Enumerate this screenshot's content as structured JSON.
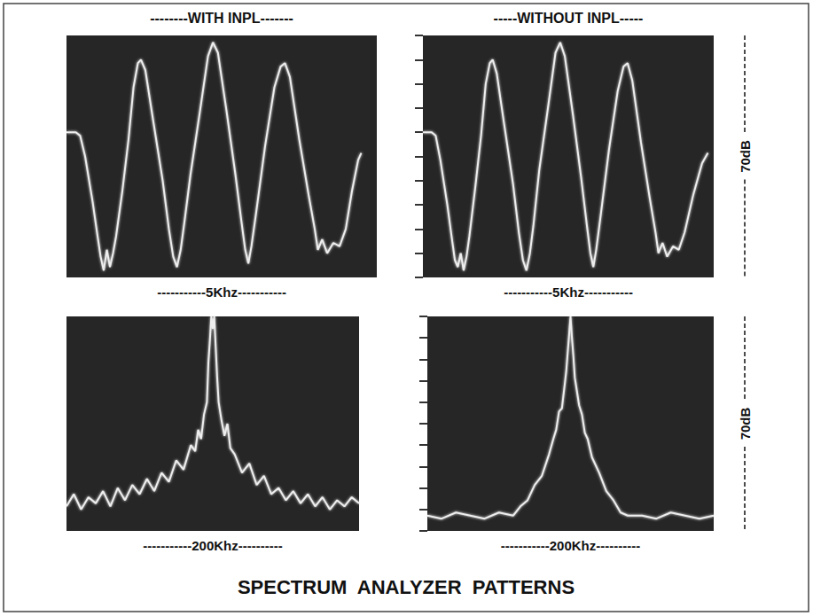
{
  "title": "SPECTRUM  ANALYZER  PATTERNS",
  "column_titles": [
    "--------WITH INPL-------",
    "-----WITHOUT INPL-----"
  ],
  "chart_data": [
    {
      "type": "line",
      "x_label": "-----------5Khz-----------",
      "xlim": [
        0,
        5
      ],
      "ylim": [
        0,
        70
      ],
      "tick_labels": false,
      "grid": false,
      "color": "#eeeeee",
      "x": [
        0,
        0.15,
        0.22,
        0.3,
        0.42,
        0.5,
        0.55,
        0.6,
        0.65,
        0.7,
        0.75,
        0.8,
        0.9,
        1.0,
        1.08,
        1.15,
        1.2,
        1.27,
        1.4,
        1.55,
        1.65,
        1.72,
        1.78,
        1.84,
        1.9,
        2.0,
        2.15,
        2.28,
        2.36,
        2.44,
        2.58,
        2.72,
        2.82,
        2.88,
        2.93,
        2.98,
        3.05,
        3.2,
        3.35,
        3.45,
        3.52,
        3.6,
        3.75,
        3.9,
        4.0,
        4.05,
        4.12,
        4.2,
        4.3,
        4.4,
        4.5,
        4.6,
        4.7,
        4.75
      ],
      "values": [
        42,
        42,
        41,
        35,
        22,
        12,
        6,
        2,
        8,
        3,
        7,
        12,
        25,
        40,
        55,
        62,
        63,
        60,
        45,
        28,
        14,
        6,
        3,
        8,
        16,
        30,
        48,
        64,
        68,
        65,
        48,
        30,
        16,
        8,
        4,
        9,
        18,
        38,
        55,
        61,
        62,
        58,
        40,
        24,
        14,
        8,
        11,
        7,
        10,
        9,
        14,
        25,
        34,
        36
      ]
    },
    {
      "type": "line",
      "x_label": "-----------5Khz-----------",
      "y_label": "70dB",
      "xlim": [
        0,
        5
      ],
      "ylim": [
        0,
        70
      ],
      "yticks": [
        0,
        7,
        14,
        21,
        28,
        35,
        42,
        49,
        56,
        63,
        70
      ],
      "tick_labels": false,
      "grid": false,
      "color": "#eeeeee",
      "x": [
        0,
        0.15,
        0.22,
        0.3,
        0.42,
        0.5,
        0.55,
        0.6,
        0.65,
        0.7,
        0.75,
        0.8,
        0.9,
        1.0,
        1.08,
        1.15,
        1.2,
        1.27,
        1.4,
        1.55,
        1.65,
        1.72,
        1.78,
        1.84,
        1.9,
        2.0,
        2.15,
        2.28,
        2.36,
        2.44,
        2.58,
        2.72,
        2.82,
        2.88,
        2.93,
        2.98,
        3.05,
        3.2,
        3.35,
        3.45,
        3.52,
        3.6,
        3.75,
        3.9,
        4.0,
        4.05,
        4.12,
        4.2,
        4.3,
        4.4,
        4.5,
        4.65,
        4.8,
        4.9
      ],
      "values": [
        42,
        42,
        41,
        34,
        21,
        11,
        5,
        3,
        7,
        2,
        6,
        12,
        26,
        41,
        56,
        62,
        63,
        59,
        44,
        27,
        13,
        5,
        2,
        7,
        15,
        31,
        49,
        65,
        68,
        64,
        47,
        29,
        15,
        7,
        3,
        8,
        17,
        37,
        54,
        61,
        62,
        57,
        39,
        23,
        13,
        7,
        10,
        6,
        9,
        8,
        13,
        24,
        33,
        36
      ]
    },
    {
      "type": "line",
      "x_label": "-----------200Khz----------",
      "xlim": [
        0,
        200
      ],
      "ylim": [
        0,
        70
      ],
      "tick_labels": false,
      "grid": false,
      "color": "#eeeeee",
      "x": [
        0,
        5,
        10,
        15,
        20,
        25,
        30,
        35,
        40,
        45,
        50,
        55,
        60,
        65,
        70,
        75,
        80,
        85,
        88,
        90,
        92,
        94,
        96,
        97,
        98,
        99,
        100,
        101,
        102,
        103,
        104,
        106,
        108,
        110,
        112,
        115,
        120,
        125,
        130,
        135,
        140,
        145,
        150,
        155,
        160,
        165,
        170,
        175,
        180,
        185,
        190,
        195,
        200
      ],
      "values": [
        8,
        12,
        7,
        11,
        9,
        13,
        8,
        14,
        10,
        15,
        12,
        17,
        13,
        19,
        16,
        23,
        20,
        28,
        26,
        33,
        30,
        38,
        42,
        55,
        62,
        70,
        66,
        70,
        60,
        50,
        42,
        36,
        31,
        35,
        27,
        25,
        19,
        22,
        15,
        18,
        12,
        14,
        10,
        13,
        9,
        12,
        8,
        11,
        7,
        10,
        8,
        11,
        9
      ]
    },
    {
      "type": "line",
      "x_label": "-----------200Khz----------",
      "y_label": "70dB",
      "xlim": [
        0,
        200
      ],
      "ylim": [
        0,
        70
      ],
      "yticks": [
        0,
        7,
        14,
        21,
        28,
        35,
        42,
        49,
        56,
        63,
        70
      ],
      "tick_labels": false,
      "grid": false,
      "color": "#eeeeee",
      "x": [
        0,
        10,
        20,
        30,
        40,
        50,
        60,
        65,
        70,
        75,
        80,
        85,
        88,
        90,
        92,
        94,
        96,
        97,
        98,
        99,
        100,
        101,
        102,
        103,
        104,
        106,
        108,
        110,
        112,
        115,
        120,
        125,
        130,
        135,
        140,
        150,
        160,
        170,
        180,
        190,
        200
      ],
      "values": [
        5,
        4,
        6,
        5,
        4,
        6,
        5,
        8,
        10,
        15,
        18,
        25,
        30,
        33,
        39,
        40,
        48,
        52,
        58,
        64,
        70,
        63,
        57,
        50,
        47,
        41,
        38,
        32,
        30,
        24,
        19,
        13,
        10,
        6,
        5,
        5,
        4,
        6,
        5,
        4,
        5
      ]
    }
  ]
}
